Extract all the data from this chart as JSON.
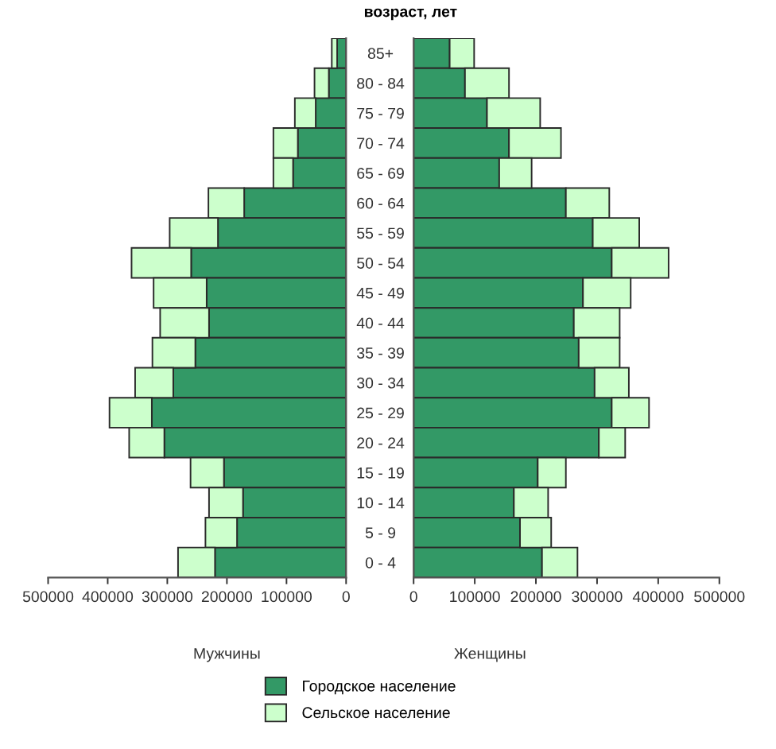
{
  "chart_data": [
    {
      "type": "bar",
      "orientation": "horizontal",
      "stacked": true,
      "xlabel": "Мужчины",
      "categories": [
        "85+",
        "80 - 84",
        "75 - 79",
        "70 - 74",
        "65 - 69",
        "60 - 64",
        "55 - 59",
        "50 - 54",
        "45 - 49",
        "40 - 44",
        "35 - 39",
        "30 - 34",
        "25 - 29",
        "20 - 24",
        "15 - 19",
        "10 - 14",
        "5 - 9",
        "0 - 4"
      ],
      "series": [
        {
          "name": "Городское население",
          "color": "#339966",
          "values": [
            15000,
            29000,
            51000,
            81000,
            89000,
            171000,
            215000,
            260000,
            234000,
            230000,
            253000,
            290000,
            326000,
            305000,
            205000,
            173000,
            183000,
            220000
          ]
        },
        {
          "name": "Сельское население",
          "color": "#ccffcc",
          "values": [
            9000,
            24000,
            35000,
            41000,
            33000,
            60000,
            81000,
            100000,
            89000,
            82000,
            72000,
            64000,
            71000,
            59000,
            56000,
            57000,
            53000,
            62000
          ]
        }
      ],
      "xlim": [
        500000,
        0
      ],
      "xticks": [
        500000,
        400000,
        300000,
        200000,
        100000,
        0
      ],
      "tick_labels": "x",
      "legend": "bottom"
    },
    {
      "type": "bar",
      "orientation": "horizontal",
      "stacked": true,
      "xlabel": "Женщины",
      "ylabel": "возраст, лет",
      "categories": [
        "85+",
        "80 - 84",
        "75 - 79",
        "70 - 74",
        "65 - 69",
        "60 - 64",
        "55 - 59",
        "50 - 54",
        "45 - 49",
        "40 - 44",
        "35 - 39",
        "30 - 34",
        "25 - 29",
        "20 - 24",
        "15 - 19",
        "10 - 14",
        "5 - 9",
        "0 - 4"
      ],
      "series": [
        {
          "name": "Городское население",
          "color": "#339966",
          "values": [
            59000,
            84000,
            120000,
            156000,
            140000,
            249000,
            293000,
            324000,
            277000,
            262000,
            270000,
            296000,
            324000,
            303000,
            203000,
            164000,
            174000,
            210000
          ]
        },
        {
          "name": "Сельское население",
          "color": "#ccffcc",
          "values": [
            40000,
            72000,
            87000,
            85000,
            53000,
            71000,
            76000,
            93000,
            78000,
            75000,
            67000,
            56000,
            61000,
            43000,
            46000,
            56000,
            51000,
            58000
          ]
        }
      ],
      "xlim": [
        0,
        500000
      ],
      "xticks": [
        0,
        100000,
        200000,
        300000,
        400000,
        500000
      ]
    }
  ]
}
